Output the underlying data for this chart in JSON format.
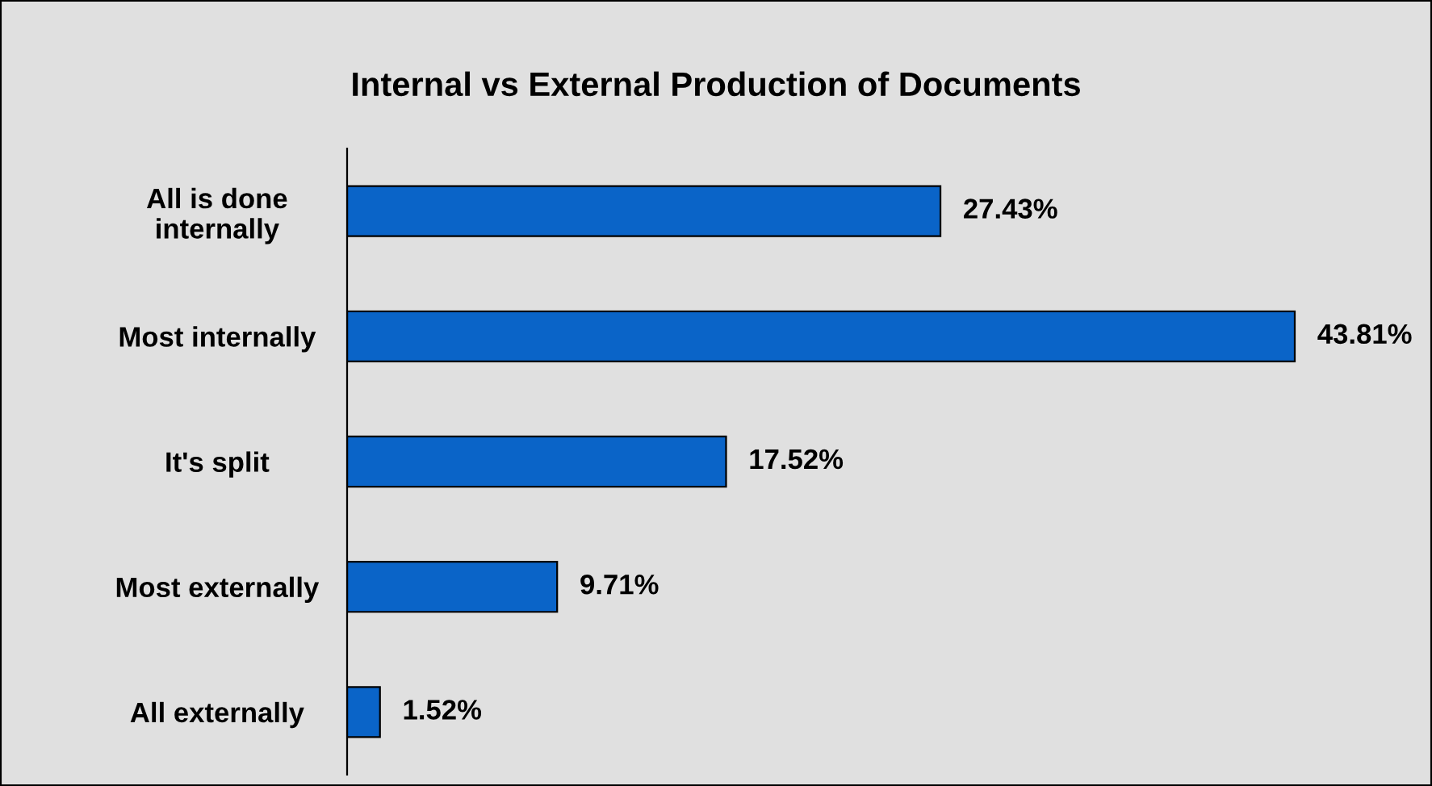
{
  "chart_data": {
    "type": "bar",
    "orientation": "horizontal",
    "title": "Internal vs External Production of Documents",
    "categories": [
      "All is done\ninternally",
      "Most internally",
      "It's split",
      "Most externally",
      "All externally"
    ],
    "values": [
      27.43,
      43.81,
      17.52,
      9.71,
      1.52
    ],
    "value_labels": [
      "27.43%",
      "43.81%",
      "17.52%",
      "9.71%",
      "1.52%"
    ],
    "color": "#0a64c8",
    "grid": false,
    "legend": false
  }
}
